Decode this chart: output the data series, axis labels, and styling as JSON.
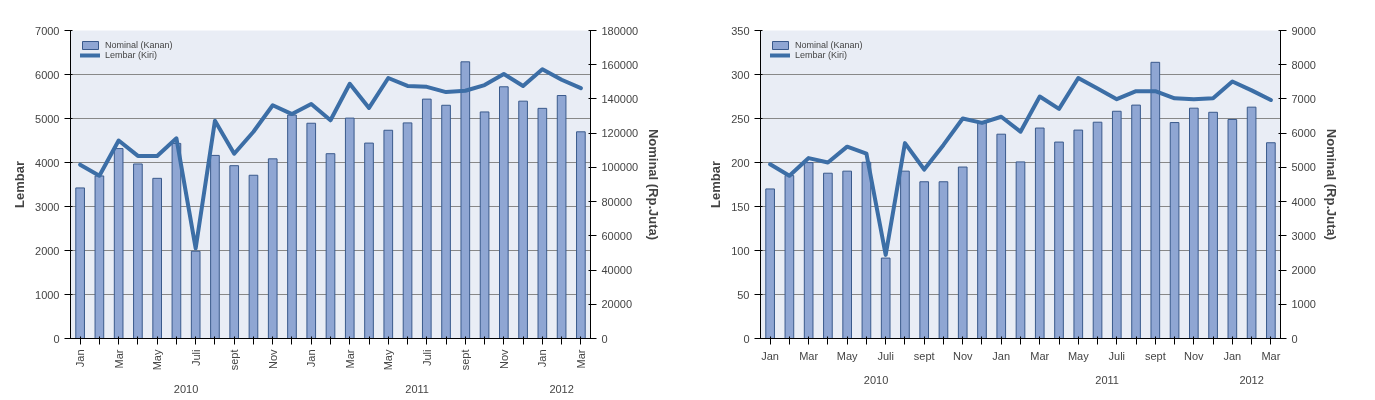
{
  "chart_data": [
    {
      "type": "bar",
      "ylabel": "Lembar",
      "y2label": "Nominal (Rp.Juta)",
      "categories": [
        "Jan",
        null,
        "Mar",
        null,
        "May",
        null,
        "Juli",
        null,
        "sept",
        null,
        "Nov",
        null,
        "Jan",
        null,
        "Mar",
        null,
        "May",
        null,
        "Juli",
        null,
        "sept",
        null,
        "Nov",
        null,
        "Jan",
        null,
        "Mar"
      ],
      "series": [
        {
          "name": "Nominal (Kanan)",
          "axis": "y2",
          "color": "#8fa6d3",
          "values": [
            88000,
            95000,
            111000,
            102000,
            93600,
            114000,
            51000,
            107000,
            101000,
            95400,
            105000,
            130600,
            125800,
            108000,
            128800,
            114200,
            121700,
            126000,
            139900,
            136300,
            161700,
            132400,
            147100,
            138700,
            134500,
            142000,
            120800
          ]
        },
        {
          "name": "Lembar (Kiri)",
          "type": "line",
          "color": "#3c6ea6",
          "values": [
            3950,
            3700,
            4500,
            4150,
            4150,
            4550,
            2050,
            4950,
            4200,
            4700,
            5300,
            5100,
            5330,
            4960,
            5790,
            5240,
            5920,
            5740,
            5720,
            5600,
            5630,
            5760,
            6010,
            5740,
            6120,
            5880,
            5690
          ]
        }
      ],
      "ylim": [
        0,
        7000
      ],
      "yticks": [
        0,
        1000,
        2000,
        3000,
        4000,
        5000,
        6000,
        7000
      ],
      "y2lim": [
        0,
        180000
      ],
      "y2ticks": [
        0,
        20000,
        40000,
        60000,
        80000,
        100000,
        120000,
        140000,
        160000,
        180000
      ],
      "grid": "y",
      "legend": "top left",
      "annotations": [
        "2010",
        "2011",
        "2012"
      ]
    },
    {
      "type": "bar",
      "ylabel": "Lembar",
      "y2label": "Nominal (Rp.Juta)",
      "categories": [
        "Jan",
        null,
        "Mar",
        null,
        "May",
        null,
        "Juli",
        null,
        "sept",
        null,
        "Nov",
        null,
        "Jan",
        null,
        "Mar",
        null,
        "May",
        null,
        "Juli",
        null,
        "sept",
        null,
        "Nov",
        null,
        "Jan",
        null,
        "Mar"
      ],
      "series": [
        {
          "name": "Nominal (Kanan)",
          "axis": "y2",
          "color": "#8fa6d3",
          "values": [
            4370,
            4760,
            5140,
            4830,
            4890,
            5150,
            2350,
            4890,
            4580,
            4580,
            5010,
            6300,
            5970,
            5160,
            6150,
            5740,
            6090,
            6320,
            6640,
            6820,
            8070,
            6310,
            6730,
            6610,
            6400,
            6760,
            5720
          ]
        },
        {
          "name": "Lembar (Kiri)",
          "type": "line",
          "color": "#3c6ea6",
          "values": [
            198,
            185,
            205,
            200,
            218,
            210,
            95,
            222,
            192,
            220,
            250,
            245,
            252,
            235,
            275,
            261,
            296,
            284,
            272,
            281,
            281,
            273,
            272,
            273,
            292,
            282,
            271
          ]
        }
      ],
      "ylim": [
        0,
        350
      ],
      "yticks": [
        0,
        50,
        100,
        150,
        200,
        250,
        300,
        350
      ],
      "y2lim": [
        0,
        9000
      ],
      "y2ticks": [
        0,
        1000,
        2000,
        3000,
        4000,
        5000,
        6000,
        7000,
        8000,
        9000
      ],
      "grid": "y",
      "legend": "top left",
      "annotations": [
        "2010",
        "2011",
        "2012"
      ]
    }
  ]
}
